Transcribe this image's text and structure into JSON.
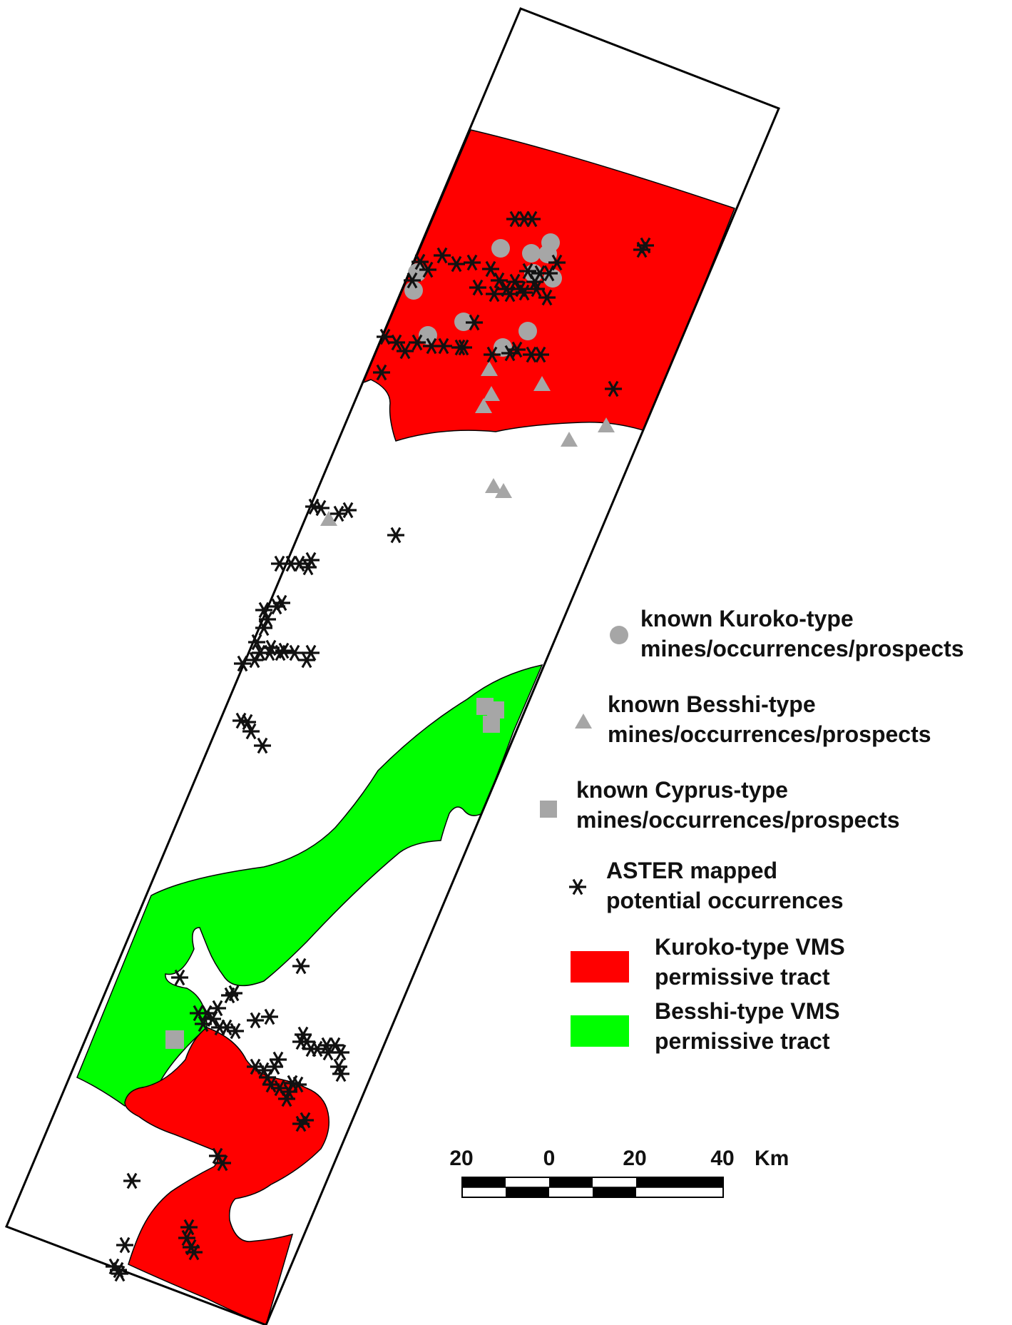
{
  "colors": {
    "kuroko_tract": "#ff0000",
    "besshi_tract": "#00ff00",
    "known_deposit_symbol": "#a6a6a6",
    "aster_symbol": "#111111",
    "outline": "#000000"
  },
  "legend": {
    "kuroko": {
      "symbol": "circle",
      "line1": "known Kuroko-type",
      "line2": "mines/occurrences/prospects"
    },
    "besshi": {
      "symbol": "triangle",
      "line1": "known Besshi-type",
      "line2": "mines/occurrences/prospects"
    },
    "cyprus": {
      "symbol": "square",
      "line1": "known Cyprus-type",
      "line2": "mines/occurrences/prospects"
    },
    "aster": {
      "symbol": "asterisk",
      "line1": "ASTER mapped",
      "line2": "potential occurrences"
    },
    "kuroko_tract": {
      "symbol": "filled-box",
      "line1": "Kuroko-type VMS",
      "line2": "permissive tract"
    },
    "besshi_tract": {
      "symbol": "filled-box",
      "line1": "Besshi-type VMS",
      "line2": "permissive tract"
    }
  },
  "scale_bar": {
    "labels": [
      "20",
      "0",
      "20",
      "40"
    ],
    "unit": "Km"
  }
}
